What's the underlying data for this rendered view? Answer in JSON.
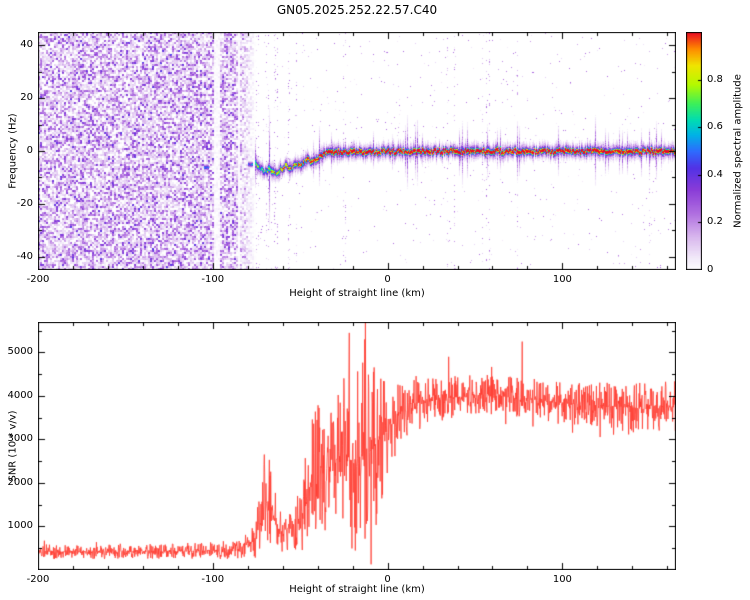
{
  "title": "GN05.2025.252.22.57.C40",
  "chart_data": [
    {
      "type": "heatmap",
      "title": "GN05.2025.252.22.57.C40",
      "xlabel": "Height of straight line (km)",
      "ylabel": "Frequency (Hz)",
      "xlim": [
        -200,
        165
      ],
      "ylim": [
        -45,
        45
      ],
      "x_ticks": [
        -200,
        -100,
        0,
        100
      ],
      "y_ticks": [
        -40,
        -20,
        0,
        20,
        40
      ],
      "grid": false,
      "colorbar": {
        "label": "Normalized spectral amplitude",
        "ticks": [
          0,
          0.2,
          0.4,
          0.6,
          0.8
        ],
        "range": [
          0,
          1
        ],
        "colormap": [
          [
            0.0,
            "#ffffff"
          ],
          [
            0.05,
            "#f3ebfa"
          ],
          [
            0.14,
            "#d9b8ee"
          ],
          [
            0.24,
            "#b06fe0"
          ],
          [
            0.34,
            "#8a3cd8"
          ],
          [
            0.43,
            "#5232e6"
          ],
          [
            0.5,
            "#2e6bff"
          ],
          [
            0.57,
            "#00b4e6"
          ],
          [
            0.63,
            "#00dcb4"
          ],
          [
            0.7,
            "#3cf05a"
          ],
          [
            0.78,
            "#b4fa00"
          ],
          [
            0.86,
            "#f0e600"
          ],
          [
            0.93,
            "#ff8c00"
          ],
          [
            1.0,
            "#eb0a23"
          ]
        ]
      },
      "description": "Speckled purple noise fills all frequencies for heights below about -76 km; a narrow high-amplitude signal ridge appears near -5 Hz at about -76 km, wanders between -8 and -3 Hz until about -40 km, then locks onto 0 Hz (red core with blue/cyan fringes) out to 165 km.",
      "noise_region": {
        "x_range": [
          -200,
          -76
        ],
        "amplitude_range": [
          0,
          0.38
        ]
      },
      "signal_track": [
        [
          -76,
          -4.0,
          0.45
        ],
        [
          -73,
          -6.0,
          0.5
        ],
        [
          -70,
          -8.0,
          0.52
        ],
        [
          -67,
          -6.5,
          0.55
        ],
        [
          -64,
          -8.0,
          0.58
        ],
        [
          -61,
          -7.0,
          0.6
        ],
        [
          -58,
          -5.0,
          0.62
        ],
        [
          -55,
          -6.5,
          0.65
        ],
        [
          -52,
          -4.5,
          0.7
        ],
        [
          -49,
          -5.5,
          0.72
        ],
        [
          -46,
          -3.0,
          0.78
        ],
        [
          -43,
          -4.0,
          0.82
        ],
        [
          -40,
          -2.5,
          0.88
        ],
        [
          -37,
          -1.0,
          0.92
        ],
        [
          -34,
          -0.3,
          0.95
        ],
        [
          0,
          0.0,
          0.96
        ],
        [
          165,
          0.0,
          0.96
        ]
      ],
      "pre_blobs": [
        [
          -104,
          -6,
          0.5
        ],
        [
          -79,
          -5,
          0.5
        ]
      ]
    },
    {
      "type": "line",
      "xlabel": "Height of straight line (km)",
      "ylabel": "SNR (10 * v/v)",
      "xlim": [
        -200,
        165
      ],
      "ylim": [
        0,
        5700
      ],
      "x_ticks": [
        -200,
        -100,
        0,
        100
      ],
      "y_ticks": [
        1000,
        2000,
        3000,
        4000,
        5000
      ],
      "line_color": "#ff3b30",
      "series": [
        {
          "name": "SNR",
          "envelope": [
            [
              -200,
              420,
              170
            ],
            [
              -130,
              430,
              170
            ],
            [
              -95,
              450,
              200
            ],
            [
              -83,
              520,
              260
            ],
            [
              -76,
              700,
              450
            ],
            [
              -71,
              1500,
              1000
            ],
            [
              -67,
              1500,
              1100
            ],
            [
              -63,
              900,
              550
            ],
            [
              -58,
              950,
              500
            ],
            [
              -53,
              1050,
              600
            ],
            [
              -48,
              1300,
              800
            ],
            [
              -44,
              2000,
              1400
            ],
            [
              -40,
              2300,
              1500
            ],
            [
              -35,
              2300,
              1400
            ],
            [
              -30,
              2500,
              1500
            ],
            [
              -25,
              2700,
              1800
            ],
            [
              -20,
              2500,
              2000
            ],
            [
              -15,
              2600,
              2300
            ],
            [
              -10,
              2700,
              2300
            ],
            [
              -5,
              3000,
              1800
            ],
            [
              0,
              3300,
              1100
            ],
            [
              8,
              3600,
              800
            ],
            [
              18,
              3850,
              550
            ],
            [
              35,
              3950,
              500
            ],
            [
              55,
              4050,
              450
            ],
            [
              75,
              3950,
              500
            ],
            [
              95,
              3850,
              480
            ],
            [
              115,
              3800,
              520
            ],
            [
              135,
              3750,
              560
            ],
            [
              150,
              3700,
              600
            ],
            [
              165,
              3750,
              600
            ]
          ],
          "spikes": [
            [
              -22,
              5450
            ],
            [
              -13,
              5300
            ],
            [
              35,
              4900
            ],
            [
              77,
              5250
            ]
          ]
        }
      ]
    }
  ]
}
